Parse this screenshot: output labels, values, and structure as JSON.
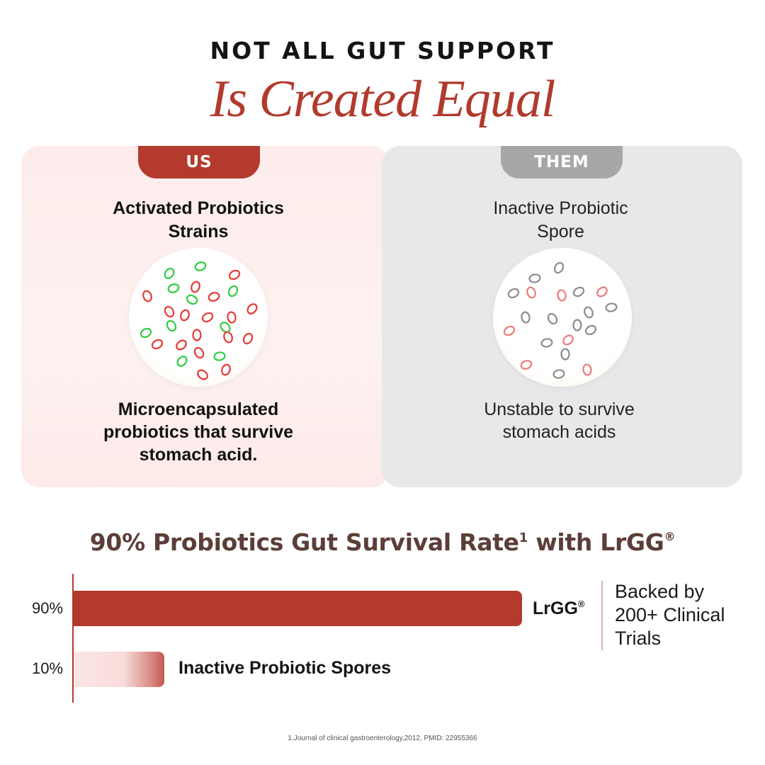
{
  "heading": {
    "top_line": "NOT ALL GUT SUPPORT",
    "script_line": "Is Created Equal"
  },
  "us": {
    "tab_label": "US",
    "title_line1": "Activated Probiotics",
    "title_line2": "Strains",
    "desc_line1": "Microencapsulated",
    "desc_line2": "probiotics that survive",
    "desc_line3": "stomach acid."
  },
  "them": {
    "tab_label": "THEM",
    "title_line1": "Inactive Probiotic",
    "title_line2": "Spore",
    "desc_line1": "Unstable to survive",
    "desc_line2": "stomach acids"
  },
  "survival": {
    "title_main": "90% Probiotics Gut Survival Rate",
    "title_sup": "1",
    "title_tail": " with LrGG",
    "title_reg": "®"
  },
  "bars": {
    "lrgg": {
      "pct_label": "90%",
      "name": "LrGG",
      "reg": "®",
      "value": 90
    },
    "spores": {
      "pct_label": "10%",
      "name": "Inactive Probiotic Spores",
      "value": 10
    }
  },
  "backed": {
    "line1": "Backed by",
    "line2": "200+ Clinical",
    "line3": "Trials"
  },
  "footnote": "1.Journal of clinical gastroenterology,2012, PMID: 22955366",
  "colors": {
    "brand_red": "#b33a2d",
    "heading_red": "#b13a2c",
    "them_grey": "#a6a7a8",
    "title_brown": "#5b3e37",
    "probiotic_red": "#e53935",
    "probiotic_green": "#2ecc40",
    "spore_grey": "#8c8c8c",
    "spore_pink": "#ec7b7b"
  }
}
